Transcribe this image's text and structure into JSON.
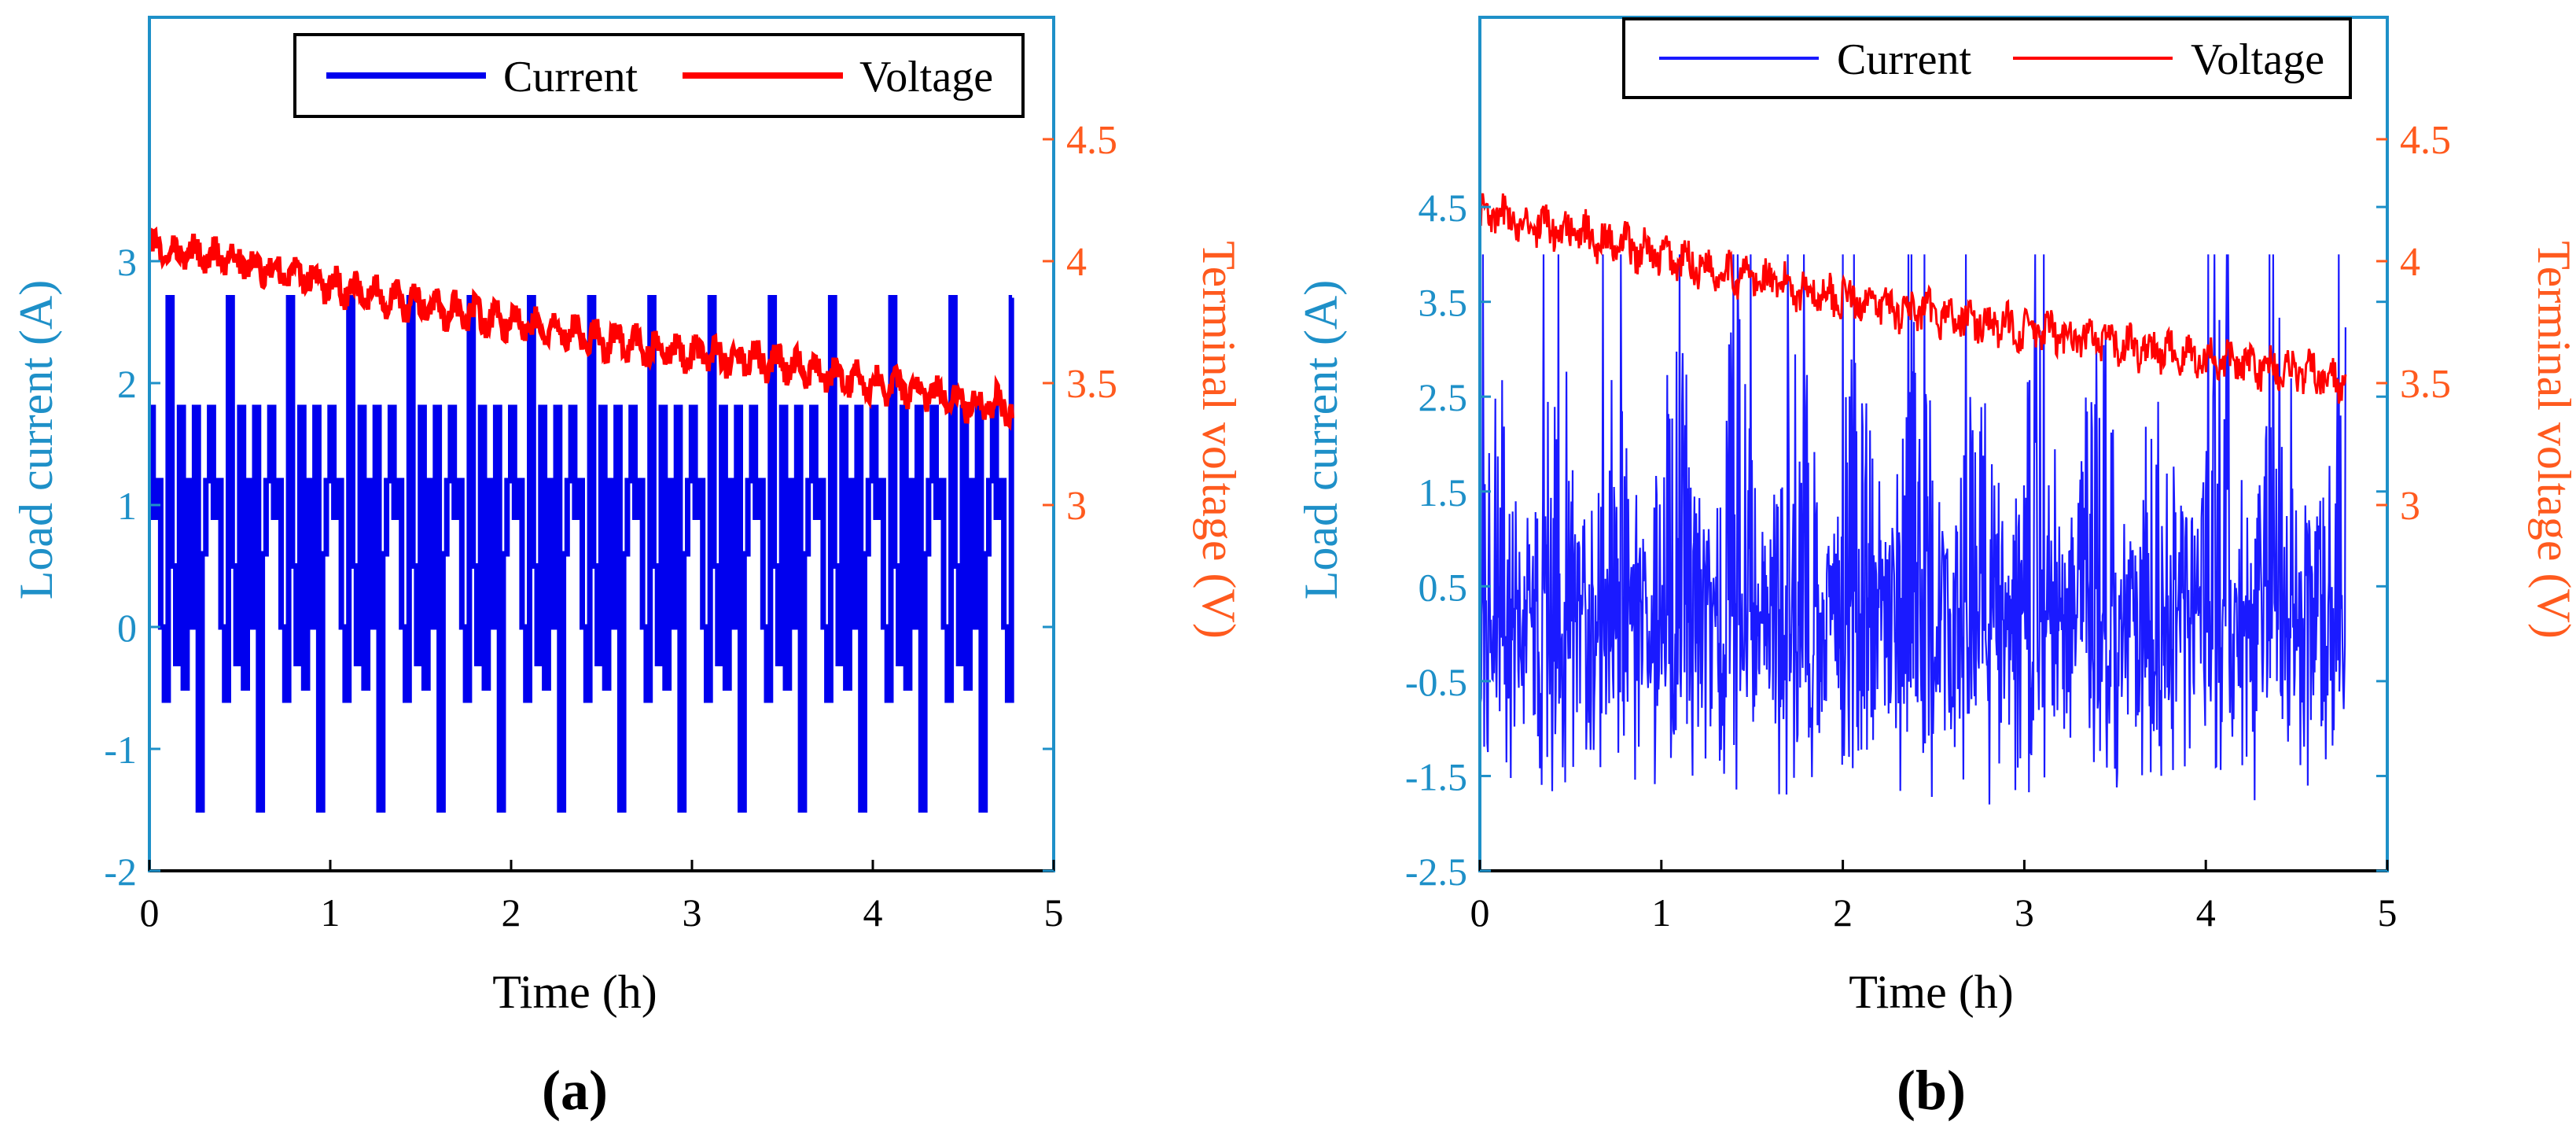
{
  "colors": {
    "current_a": "#0000ee",
    "current_b": "#1a1aff",
    "voltage": "#ff0000",
    "left_axis": "#1e90c8",
    "right_axis": "#ff5a1e",
    "frame_bottom": "#000000"
  },
  "chart_data": [
    {
      "id": "a",
      "type": "line",
      "panel_label": "(a)",
      "xlabel": "Time (h)",
      "ylabel_left": "Load current (A)",
      "ylabel_right": "Terminal voltage (V)",
      "xlim": [
        0,
        5
      ],
      "ylim_left": [
        -2,
        5
      ],
      "ylim_right": [
        1.5,
        5
      ],
      "xticks": [
        "0",
        "1",
        "2",
        "3",
        "4",
        "5"
      ],
      "yticks_left": [
        "-2",
        "-1",
        "0",
        "1",
        "2",
        "3"
      ],
      "yticks_right": [
        "3",
        "3.5",
        "4",
        "4.5"
      ],
      "legend": [
        "Current",
        "Voltage"
      ],
      "legend_position": "top-right",
      "grid": false,
      "series": [
        {
          "name": "Current",
          "axis": "left",
          "color": "#0000ee",
          "pattern_period_h": 0.333,
          "pattern_levels": [
            1.8,
            0.9,
            1.2,
            0,
            -0.6,
            2.7,
            0.5,
            -0.3,
            1.8,
            -0.5,
            1.2,
            0,
            1.8,
            -1.5,
            0.6,
            1.2
          ],
          "t_end": 4.77
        },
        {
          "name": "Voltage",
          "axis": "right",
          "color": "#ff0000",
          "x": [
            0,
            0.5,
            1,
            1.5,
            2,
            2.5,
            3,
            3.5,
            4,
            4.5,
            4.77
          ],
          "y": [
            4.05,
            4.0,
            3.9,
            3.82,
            3.75,
            3.68,
            3.62,
            3.58,
            3.5,
            3.43,
            3.4
          ]
        }
      ]
    },
    {
      "id": "b",
      "type": "line",
      "panel_label": "(b)",
      "xlabel": "Time (h)",
      "ylabel_left": "Load current (A)",
      "ylabel_right": "Terminal voltage (V)",
      "xlim": [
        0,
        5
      ],
      "ylim_left": [
        -2.5,
        6.5
      ],
      "ylim_right": [
        1.5,
        5
      ],
      "xticks": [
        "0",
        "1",
        "2",
        "3",
        "4",
        "5"
      ],
      "yticks_left": [
        "-2.5",
        "-1.5",
        "-0.5",
        "0.5",
        "1.5",
        "2.5",
        "3.5",
        "4.5"
      ],
      "yticks_right": [
        "3",
        "3.5",
        "4",
        "4.5"
      ],
      "legend": [
        "Current",
        "Voltage"
      ],
      "legend_position": "top-right",
      "grid": false,
      "series": [
        {
          "name": "Current",
          "axis": "left",
          "color": "#1a1aff",
          "period_h": 0.333,
          "max": 4.0,
          "min": -2.1,
          "t_end": 4.77
        },
        {
          "name": "Voltage",
          "axis": "right",
          "color": "#ff0000",
          "x": [
            0,
            0.5,
            1,
            1.5,
            2,
            2.5,
            3,
            3.5,
            4,
            4.5,
            4.77
          ],
          "y": [
            4.2,
            4.12,
            4.02,
            3.93,
            3.85,
            3.78,
            3.72,
            3.66,
            3.6,
            3.55,
            3.5
          ]
        }
      ]
    }
  ]
}
